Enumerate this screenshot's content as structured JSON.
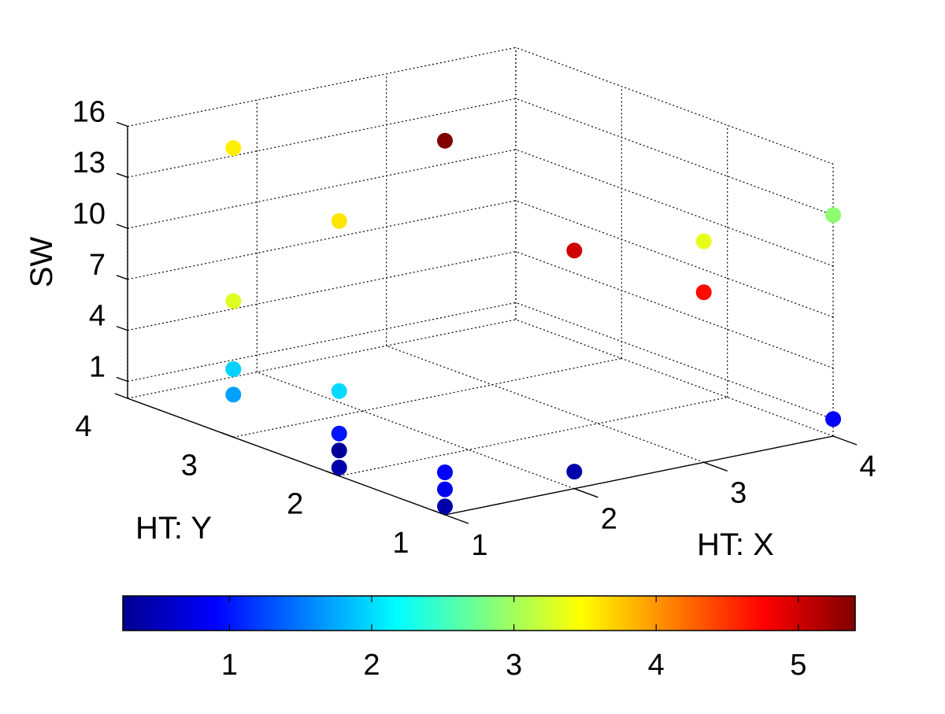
{
  "chart_data": {
    "type": "scatter",
    "projection": "3d",
    "xlabel": "HT: X",
    "ylabel": "HT: Y",
    "zlabel": "SW",
    "xticks": [
      "1",
      "2",
      "3",
      "4"
    ],
    "yticks": [
      "1",
      "2",
      "3",
      "4"
    ],
    "zticks": [
      "1",
      "4",
      "7",
      "10",
      "13",
      "16"
    ],
    "xlim": [
      1,
      4
    ],
    "ylim": [
      1,
      4
    ],
    "zlim": [
      0,
      16
    ],
    "grid": true,
    "colormap": "jet",
    "colorbar": {
      "placement": "bottom",
      "range": [
        0.25,
        5.4
      ],
      "ticks": [
        "1",
        "2",
        "3",
        "4",
        "5"
      ]
    },
    "points": [
      {
        "x": 1,
        "y": 1,
        "z": 0.5,
        "c": 0.4
      },
      {
        "x": 1,
        "y": 1,
        "z": 1.5,
        "c": 0.8
      },
      {
        "x": 1,
        "y": 1,
        "z": 2.5,
        "c": 0.9
      },
      {
        "x": 1,
        "y": 2,
        "z": 0.5,
        "c": 0.4
      },
      {
        "x": 1,
        "y": 2,
        "z": 1.5,
        "c": 0.3
      },
      {
        "x": 1,
        "y": 2,
        "z": 2.5,
        "c": 1.0
      },
      {
        "x": 1,
        "y": 3,
        "z": 2.5,
        "c": 1.7
      },
      {
        "x": 1,
        "y": 2,
        "z": 5,
        "c": 2.0
      },
      {
        "x": 1,
        "y": 3,
        "z": 4,
        "c": 1.95
      },
      {
        "x": 1,
        "y": 3,
        "z": 8,
        "c": 3.3
      },
      {
        "x": 1,
        "y": 3,
        "z": 17,
        "c": 3.55
      },
      {
        "x": 1,
        "y": 2,
        "z": 15,
        "c": 3.6
      },
      {
        "x": 1,
        "y": 1,
        "z": 22,
        "c": 5.4
      },
      {
        "x": 2,
        "y": 1,
        "z": 1,
        "c": 0.4
      },
      {
        "x": 2,
        "y": 1,
        "z": 14,
        "c": 5.0
      },
      {
        "x": 3,
        "y": 1,
        "z": 13,
        "c": 3.35
      },
      {
        "x": 3,
        "y": 1,
        "z": 10,
        "c": 4.7
      },
      {
        "x": 4,
        "y": 1,
        "z": 1,
        "c": 0.9
      },
      {
        "x": 4,
        "y": 1,
        "z": 13,
        "c": 2.9
      }
    ]
  }
}
